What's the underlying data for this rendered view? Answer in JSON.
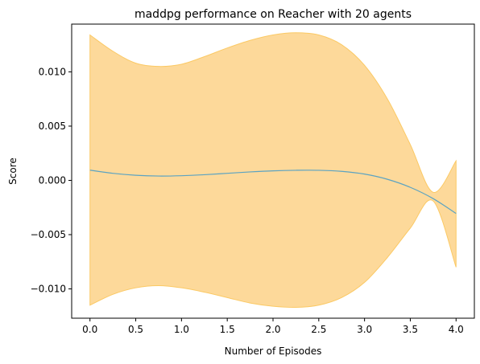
{
  "chart_data": {
    "type": "line",
    "title": "maddpg performance on Reacher with 20 agents",
    "xlabel": "Number of Episodes",
    "ylabel": "Score",
    "xlim": [
      -0.2,
      4.2
    ],
    "ylim": [
      -0.0127,
      0.0144
    ],
    "x_ticks": [
      0.0,
      0.5,
      1.0,
      1.5,
      2.0,
      2.5,
      3.0,
      3.5,
      4.0
    ],
    "x_tick_labels": [
      "0.0",
      "0.5",
      "1.0",
      "1.5",
      "2.0",
      "2.5",
      "3.0",
      "3.5",
      "4.0"
    ],
    "y_ticks": [
      -0.01,
      -0.005,
      0.0,
      0.005,
      0.01
    ],
    "y_tick_labels": [
      "−0.010",
      "−0.005",
      "0.000",
      "0.005",
      "0.010"
    ],
    "grid": false,
    "series": [
      {
        "x": [
          0,
          0.25,
          0.5,
          0.75,
          1.0,
          1.25,
          1.5,
          1.75,
          2.0,
          2.25,
          2.5,
          2.75,
          3.0,
          3.25,
          3.5,
          3.75,
          4.0
        ],
        "y": [
          0.00094,
          0.00065,
          0.00047,
          0.0004,
          0.00043,
          0.00052,
          0.00065,
          0.00078,
          0.00088,
          0.00093,
          0.00093,
          0.00083,
          0.00058,
          0.0001,
          -0.00064,
          -0.00168,
          -0.00305
        ],
        "upper": [
          0.0134,
          0.0119,
          0.0108,
          0.0105,
          0.0107,
          0.0114,
          0.0122,
          0.0129,
          0.0134,
          0.0136,
          0.0134,
          0.0125,
          0.0106,
          0.0075,
          0.0033,
          -0.0011,
          0.0018
        ],
        "lower": [
          -0.0115,
          -0.0105,
          -0.0099,
          -0.0097,
          -0.0099,
          -0.0103,
          -0.0108,
          -0.0113,
          -0.0116,
          -0.0117,
          -0.0115,
          -0.0108,
          -0.0094,
          -0.0071,
          -0.0044,
          -0.0019,
          -0.008
        ]
      }
    ],
    "colors": {
      "line": "#5ba3c2",
      "band": "#fdd99a",
      "band_edge": "#fbc964"
    }
  }
}
